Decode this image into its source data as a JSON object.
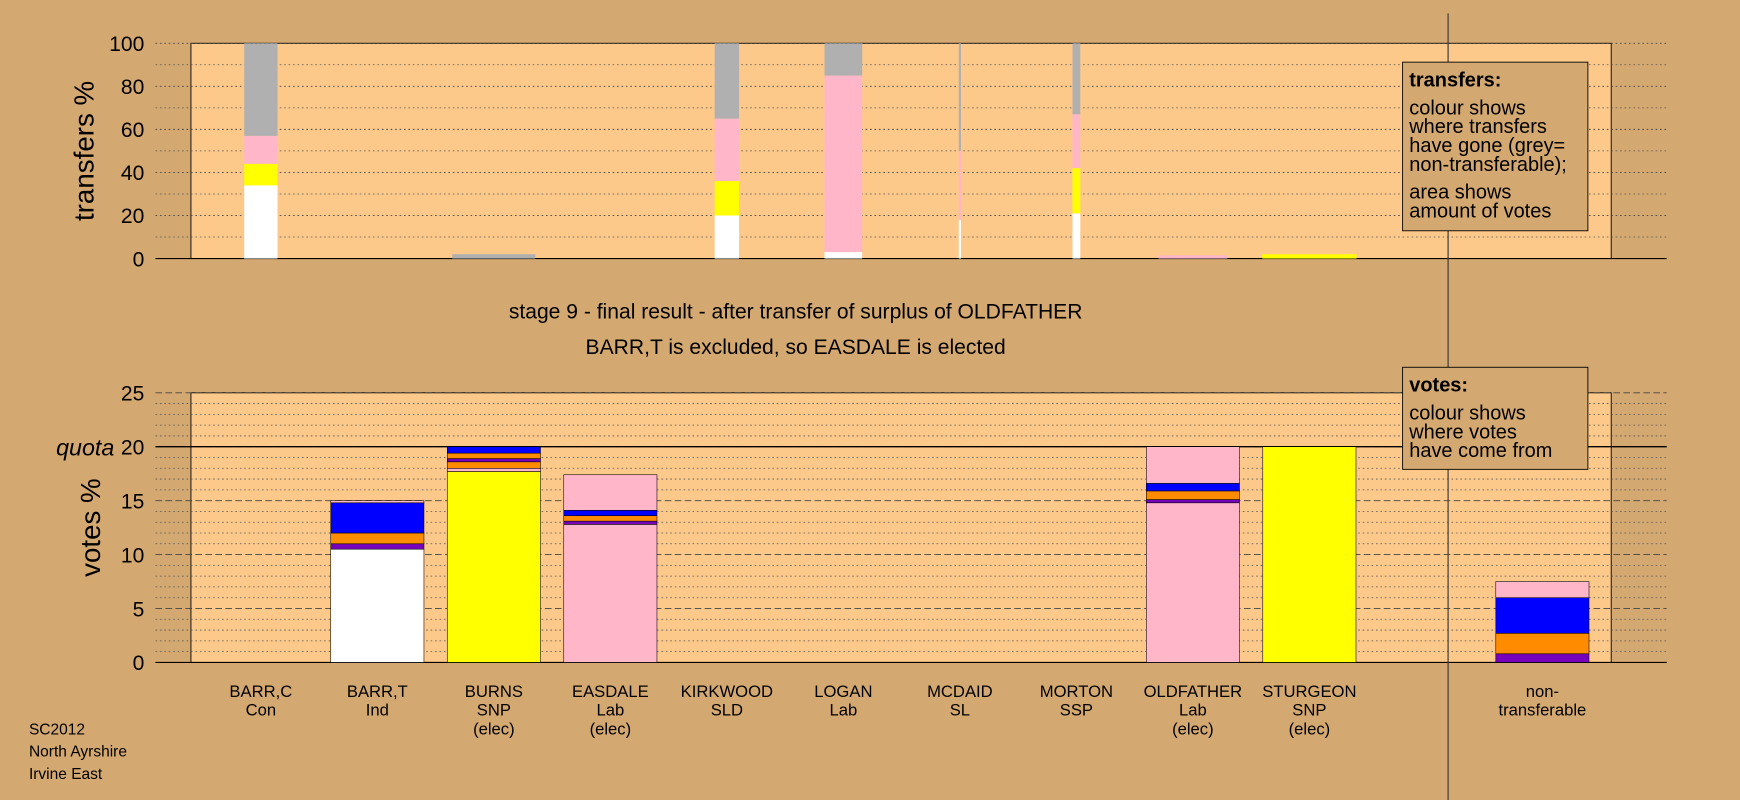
{
  "chart_data": [
    {
      "type": "stacked-bar-width",
      "ylabel": "transfers %",
      "ylim": [
        0,
        100
      ],
      "yticks": [
        0,
        20,
        40,
        60,
        80,
        100
      ],
      "minor_yticks": [
        10,
        30,
        50,
        70,
        90
      ],
      "widths": [
        30,
        0,
        75,
        0,
        22,
        34,
        2,
        7,
        62,
        85,
        0
      ],
      "segments": [
        [
          {
            "color": "#ffffff",
            "value": 34
          },
          {
            "color": "#ffff00",
            "value": 10
          },
          {
            "color": "#ffb6c8",
            "value": 13
          },
          {
            "color": "#b0b0b0",
            "value": 43
          }
        ],
        [],
        [
          {
            "color": "#b0b0b0",
            "value": 2
          }
        ],
        [],
        [
          {
            "color": "#ffffff",
            "value": 20
          },
          {
            "color": "#ffff00",
            "value": 16
          },
          {
            "color": "#ffb6c8",
            "value": 29
          },
          {
            "color": "#b0b0b0",
            "value": 35
          }
        ],
        [
          {
            "color": "#ffffff",
            "value": 3
          },
          {
            "color": "#ffb6c8",
            "value": 82
          },
          {
            "color": "#b0b0b0",
            "value": 15
          }
        ],
        [
          {
            "color": "#ffffff",
            "value": 18
          },
          {
            "color": "#ffb6c8",
            "value": 32
          },
          {
            "color": "#b0b0b0",
            "value": 50
          }
        ],
        [
          {
            "color": "#ffffff",
            "value": 21
          },
          {
            "color": "#ffff00",
            "value": 21
          },
          {
            "color": "#ffb6c8",
            "value": 25
          },
          {
            "color": "#b0b0b0",
            "value": 33
          }
        ],
        [
          {
            "color": "#ffb6c8",
            "value": 1.5
          }
        ],
        [
          {
            "color": "#ffff00",
            "value": 2
          }
        ],
        []
      ],
      "legend_title": "transfers:",
      "legend_paragraphs": [
        [
          "colour shows",
          "where transfers",
          "have gone (grey=",
          "non-transferable);"
        ],
        [
          "area shows",
          "amount of votes"
        ]
      ]
    },
    {
      "type": "stacked-bar",
      "title_lines": [
        "stage 9 - final result - after transfer of surplus of OLDFATHER",
        "BARR,T is excluded, so EASDALE is elected"
      ],
      "ylabel": "votes %",
      "ylim": [
        0,
        25
      ],
      "yticks": [
        0,
        5,
        10,
        15,
        20,
        25
      ],
      "minor_yticks": [
        1,
        2,
        3,
        4,
        6,
        7,
        8,
        9,
        11,
        12,
        13,
        14,
        16,
        17,
        18,
        19,
        21,
        22,
        23,
        24
      ],
      "quota": 20,
      "quota_label": "quota",
      "categories": [
        [
          "BARR,C",
          "Con"
        ],
        [
          "BARR,T",
          "Ind"
        ],
        [
          "BURNS",
          "SNP",
          "(elec)"
        ],
        [
          "EASDALE",
          "Lab",
          "(elec)"
        ],
        [
          "KIRKWOOD",
          "SLD"
        ],
        [
          "LOGAN",
          "Lab"
        ],
        [
          "MCDAID",
          "SL"
        ],
        [
          "MORTON",
          "SSP"
        ],
        [
          "OLDFATHER",
          "Lab",
          "(elec)"
        ],
        [
          "STURGEON",
          "SNP",
          "(elec)"
        ],
        [
          "non-",
          "transferable"
        ]
      ],
      "segments": [
        [],
        [
          {
            "color": "#ffffff",
            "value": 10.5
          },
          {
            "color": "#7700bb",
            "value": 0.5
          },
          {
            "color": "#ff8c00",
            "value": 1.0
          },
          {
            "color": "#0000ff",
            "value": 2.8
          },
          {
            "color": "#ffb6c8",
            "value": 0.2
          }
        ],
        [
          {
            "color": "#ffff00",
            "value": 17.7
          },
          {
            "color": "#ffb6c8",
            "value": 0.3
          },
          {
            "color": "#ff8c00",
            "value": 0.6
          },
          {
            "color": "#7700bb",
            "value": 0.3
          },
          {
            "color": "#ff8c00",
            "value": 0.5
          },
          {
            "color": "#0000ff",
            "value": 0.6
          }
        ],
        [
          {
            "color": "#ffb6c8",
            "value": 12.8
          },
          {
            "color": "#7700bb",
            "value": 0.3
          },
          {
            "color": "#ff8c00",
            "value": 0.5
          },
          {
            "color": "#0000ff",
            "value": 0.5
          },
          {
            "color": "#ffb6c8",
            "value": 3.3
          }
        ],
        [],
        [],
        [],
        [],
        [
          {
            "color": "#ffb6c8",
            "value": 14.8
          },
          {
            "color": "#7700bb",
            "value": 0.3
          },
          {
            "color": "#ff8c00",
            "value": 0.8
          },
          {
            "color": "#0000ff",
            "value": 0.7
          },
          {
            "color": "#ffb6c8",
            "value": 3.4
          }
        ],
        [
          {
            "color": "#ffff00",
            "value": 20
          }
        ],
        [
          {
            "color": "#7700bb",
            "value": 0.8
          },
          {
            "color": "#ff8c00",
            "value": 1.9
          },
          {
            "color": "#0000ff",
            "value": 3.3
          },
          {
            "color": "#ffb6c8",
            "value": 1.5
          }
        ]
      ],
      "legend_title": "votes:",
      "legend_paragraphs": [
        [
          "colour shows",
          "where votes",
          "have come from"
        ]
      ]
    }
  ],
  "footer": [
    "SC2012",
    "North Ayrshire",
    "Irvine East"
  ]
}
